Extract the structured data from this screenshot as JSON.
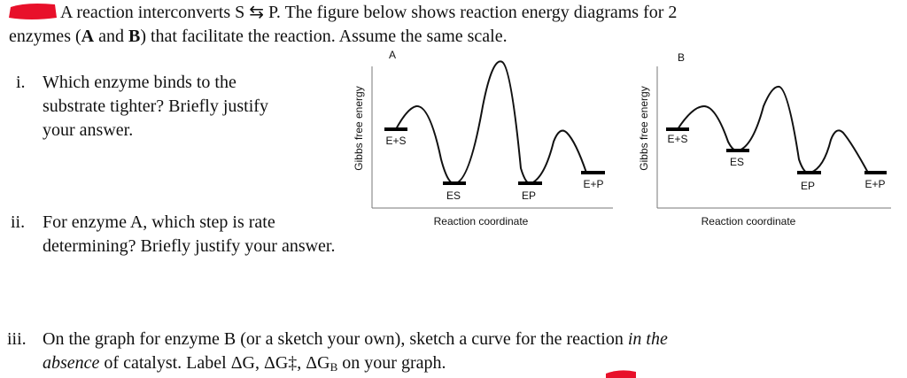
{
  "intro": {
    "line1": "A reaction interconverts S ⇆ P. The figure below shows reaction energy diagrams for 2",
    "line2": [
      "enzymes (",
      "A",
      " and ",
      "B",
      ") that facilitate the reaction. Assume the same scale."
    ]
  },
  "questions": [
    {
      "number": "i.",
      "lines": [
        "Which enzyme binds to the",
        "substrate tighter? Briefly justify",
        "your answer."
      ]
    },
    {
      "number": "ii.",
      "lines": [
        "For enzyme A, which step is rate",
        "determining? Briefly justify your answer."
      ]
    },
    {
      "number": "iii.",
      "lines": [
        [
          "On the graph for enzyme B (or a sketch your own), sketch a curve for the reaction ",
          "in the"
        ],
        [
          "absence",
          " of catalyst. Label ΔG, ΔG‡, ΔG",
          "B",
          " on your graph."
        ]
      ]
    }
  ],
  "diagrams": [
    {
      "title": "A",
      "y_axis": "Gibbs free energy",
      "x_axis": "Reaction coordinate",
      "states": [
        "E+S",
        "ES",
        "EP",
        "E+P"
      ]
    },
    {
      "title": "B",
      "y_axis": "Gibbs free energy",
      "x_axis": "Reaction coordinate",
      "states": [
        "E+S",
        "ES",
        "EP",
        "E+P"
      ]
    }
  ]
}
